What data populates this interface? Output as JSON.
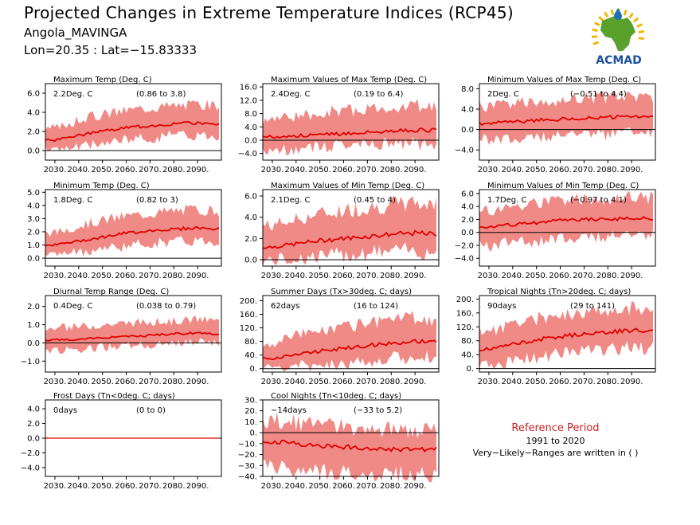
{
  "header": {
    "title": "Projected Changes in Extreme Temperature Indices (RCP45)",
    "location": "Angola_MAVINGA",
    "coords": "Lon=20.35 : Lat=−15.83333"
  },
  "logo": {
    "text": "ACMAD",
    "colors": {
      "africa": "#5aa02c",
      "rays": "#f2b705",
      "drop": "#1d6fb8",
      "text": "#1d4f9c"
    }
  },
  "reference": {
    "title": "Reference Period",
    "years": "1991 to 2020",
    "note": "Very−Likely−Ranges are written in ( )"
  },
  "colors": {
    "band": "#f08a86",
    "line": "#e00000",
    "zero": "#000000"
  },
  "chart_data": [
    {
      "type": "area",
      "title": "Maximum Temp (Deg. C)",
      "stat": "2.2Deg. C",
      "range": "(0.86 to 3.8)",
      "x": [
        2030,
        2040,
        2050,
        2060,
        2070,
        2080,
        2090,
        2099
      ],
      "ylim": [
        -1.0,
        7.0
      ],
      "yticks": [
        "6.0",
        "4.0",
        "2.0",
        "0.0"
      ],
      "ytick_values": [
        6,
        4,
        2,
        0
      ],
      "xticks": [
        "2030.",
        "2040.",
        "2050.",
        "2060.",
        "2070.",
        "2080.",
        "2090."
      ],
      "median": [
        1.1,
        1.6,
        2.0,
        2.4,
        2.6,
        2.8,
        2.9,
        2.8
      ],
      "low": [
        0.3,
        0.6,
        1.0,
        1.4,
        1.6,
        1.8,
        1.9,
        1.8
      ],
      "high": [
        2.2,
        3.0,
        3.6,
        4.0,
        4.3,
        4.5,
        4.6,
        4.5
      ]
    },
    {
      "type": "area",
      "title": "Maximum Values of Max Temp (Deg. C)",
      "stat": "2.4Deg. C",
      "range": "(0.19 to 6.4)",
      "x": [
        2030,
        2040,
        2050,
        2060,
        2070,
        2080,
        2090,
        2099
      ],
      "ylim": [
        -6.0,
        17.0
      ],
      "yticks": [
        "16.0",
        "12.0",
        "8.0",
        "4.0",
        "0.0",
        "−4.0"
      ],
      "ytick_values": [
        16,
        12,
        8,
        4,
        0,
        -4
      ],
      "xticks": [
        "2030.",
        "2040.",
        "2050.",
        "2060.",
        "2070.",
        "2080.",
        "2090."
      ],
      "median": [
        1.0,
        1.3,
        1.7,
        2.0,
        2.4,
        2.7,
        3.0,
        3.0
      ],
      "low": [
        -2.5,
        -1.8,
        -1.2,
        -1.0,
        -0.7,
        -0.5,
        -0.3,
        -0.4
      ],
      "high": [
        5.5,
        6.5,
        7.5,
        8.0,
        8.5,
        9.0,
        9.5,
        9.2
      ]
    },
    {
      "type": "area",
      "title": "Minimum Values of Max Temp (Deg. C)",
      "stat": "2Deg. C",
      "range": "(−0.51 to 4.4)",
      "x": [
        2030,
        2040,
        2050,
        2060,
        2070,
        2080,
        2090,
        2099
      ],
      "ylim": [
        -6.0,
        9.0
      ],
      "yticks": [
        "8.0",
        "4.0",
        "0.0",
        "−4.0"
      ],
      "ytick_values": [
        8,
        4,
        0,
        -4
      ],
      "xticks": [
        "2030.",
        "2040.",
        "2050.",
        "2060.",
        "2070.",
        "2080.",
        "2090."
      ],
      "median": [
        1.2,
        1.5,
        1.8,
        2.0,
        2.2,
        2.4,
        2.5,
        2.4
      ],
      "low": [
        -1.5,
        -1.2,
        -0.9,
        -0.6,
        -0.4,
        -0.2,
        0.0,
        -0.2
      ],
      "high": [
        4.0,
        4.5,
        5.0,
        5.3,
        5.6,
        5.8,
        6.0,
        5.8
      ]
    },
    {
      "type": "area",
      "title": "Minimum Temp (Deg. C)",
      "stat": "1.8Deg. C",
      "range": "(0.82 to 3)",
      "x": [
        2030,
        2040,
        2050,
        2060,
        2070,
        2080,
        2090,
        2099
      ],
      "ylim": [
        -0.6,
        5.2
      ],
      "yticks": [
        "5.0",
        "4.0",
        "3.0",
        "2.0",
        "1.0",
        "0.0"
      ],
      "ytick_values": [
        5,
        4,
        3,
        2,
        1,
        0
      ],
      "xticks": [
        "2030.",
        "2040.",
        "2050.",
        "2060.",
        "2070.",
        "2080.",
        "2090."
      ],
      "median": [
        1.0,
        1.3,
        1.6,
        1.9,
        2.1,
        2.2,
        2.3,
        2.2
      ],
      "low": [
        0.4,
        0.6,
        0.9,
        1.1,
        1.3,
        1.4,
        1.5,
        1.4
      ],
      "high": [
        1.8,
        2.3,
        2.7,
        3.0,
        3.2,
        3.4,
        3.5,
        3.4
      ]
    },
    {
      "type": "area",
      "title": "Maximum Values of Min Temp (Deg. C)",
      "stat": "2.1Deg. C",
      "range": "(0.45 to 4)",
      "x": [
        2030,
        2040,
        2050,
        2060,
        2070,
        2080,
        2090,
        2099
      ],
      "ylim": [
        -0.6,
        6.6
      ],
      "yticks": [
        "6.0",
        "4.0",
        "2.0",
        "0.0"
      ],
      "ytick_values": [
        6,
        4,
        2,
        0
      ],
      "xticks": [
        "2030.",
        "2040.",
        "2050.",
        "2060.",
        "2070.",
        "2080.",
        "2090."
      ],
      "median": [
        1.2,
        1.5,
        1.8,
        2.0,
        2.2,
        2.4,
        2.5,
        2.4
      ],
      "low": [
        0.2,
        0.4,
        0.6,
        0.8,
        1.0,
        1.1,
        1.2,
        1.1
      ],
      "high": [
        3.0,
        3.5,
        4.0,
        4.3,
        4.6,
        4.8,
        5.0,
        4.9
      ]
    },
    {
      "type": "area",
      "title": "Minimum Values of Min Temp (Deg. C)",
      "stat": "1.7Deg. C",
      "range": "(−0.97 to 4.1)",
      "x": [
        2030,
        2040,
        2050,
        2060,
        2070,
        2080,
        2090,
        2099
      ],
      "ylim": [
        -5.2,
        6.6
      ],
      "yticks": [
        "6.0",
        "4.0",
        "2.0",
        "0.0",
        "−2.0",
        "−4.0"
      ],
      "ytick_values": [
        6,
        4,
        2,
        0,
        -2,
        -4
      ],
      "xticks": [
        "2030.",
        "2040.",
        "2050.",
        "2060.",
        "2070.",
        "2080.",
        "2090."
      ],
      "median": [
        0.8,
        1.2,
        1.5,
        1.8,
        2.0,
        2.1,
        2.2,
        2.1
      ],
      "low": [
        -1.6,
        -1.2,
        -0.8,
        -0.5,
        -0.3,
        -0.2,
        -0.1,
        -0.2
      ],
      "high": [
        3.0,
        3.5,
        4.0,
        4.3,
        4.6,
        4.8,
        5.0,
        4.8
      ]
    },
    {
      "type": "area",
      "title": "Diurnal Temp Range (Deg. C)",
      "stat": "0.4Deg. C",
      "range": "(0.038 to 0.79)",
      "x": [
        2030,
        2040,
        2050,
        2060,
        2070,
        2080,
        2090,
        2099
      ],
      "ylim": [
        -1.6,
        2.6
      ],
      "yticks": [
        "2.0",
        "1.0",
        "0.0",
        "−1.0"
      ],
      "ytick_values": [
        2,
        1,
        0,
        -1
      ],
      "xticks": [
        "2030.",
        "2040.",
        "2050.",
        "2060.",
        "2070.",
        "2080.",
        "2090."
      ],
      "median": [
        0.15,
        0.2,
        0.3,
        0.35,
        0.4,
        0.5,
        0.55,
        0.5
      ],
      "low": [
        -0.35,
        -0.25,
        -0.15,
        -0.05,
        0.0,
        0.05,
        0.1,
        0.05
      ],
      "high": [
        0.7,
        0.8,
        0.9,
        1.0,
        1.05,
        1.1,
        1.2,
        1.1
      ]
    },
    {
      "type": "area",
      "title": "Summer Days (Tx>30deg. C; days)",
      "stat": "62days",
      "range": "(16 to 124)",
      "x": [
        2030,
        2040,
        2050,
        2060,
        2070,
        2080,
        2090,
        2099
      ],
      "ylim": [
        -10,
        215
      ],
      "yticks": [
        "200.",
        "160.",
        "120.",
        "80.",
        "40.",
        "0."
      ],
      "ytick_values": [
        200,
        160,
        120,
        80,
        40,
        0
      ],
      "xticks": [
        "2030.",
        "2040.",
        "2050.",
        "2060.",
        "2070.",
        "2080.",
        "2090."
      ],
      "median": [
        30,
        42,
        52,
        60,
        68,
        75,
        80,
        78
      ],
      "low": [
        5,
        12,
        20,
        26,
        32,
        38,
        42,
        40
      ],
      "high": [
        70,
        90,
        108,
        118,
        128,
        135,
        140,
        136
      ]
    },
    {
      "type": "area",
      "title": "Tropical Nights (Tn>20deg. C; days)",
      "stat": "90days",
      "range": "(29 to 141)",
      "x": [
        2030,
        2040,
        2050,
        2060,
        2070,
        2080,
        2090,
        2099
      ],
      "ylim": [
        -10,
        210
      ],
      "yticks": [
        "200.",
        "160.",
        "120.",
        "80.",
        "40.",
        "0."
      ],
      "ytick_values": [
        200,
        160,
        120,
        80,
        40,
        0
      ],
      "xticks": [
        "2030.",
        "2040.",
        "2050.",
        "2060.",
        "2070.",
        "2080.",
        "2090."
      ],
      "median": [
        55,
        70,
        82,
        92,
        100,
        105,
        110,
        108
      ],
      "low": [
        18,
        30,
        40,
        50,
        58,
        63,
        68,
        66
      ],
      "high": [
        100,
        120,
        135,
        145,
        155,
        160,
        165,
        162
      ]
    },
    {
      "type": "area",
      "title": "Frost Days (Tn<0deg. C; days)",
      "stat": "0days",
      "range": "(0 to 0)",
      "x": [
        2030,
        2040,
        2050,
        2060,
        2070,
        2080,
        2090,
        2099
      ],
      "ylim": [
        -5.2,
        5.2
      ],
      "yticks": [
        "4.0",
        "2.0",
        "0.0",
        "−2.0",
        "−4.0"
      ],
      "ytick_values": [
        4,
        2,
        0,
        -2,
        -4
      ],
      "xticks": [
        "2030.",
        "2040.",
        "2050.",
        "2060.",
        "2070.",
        "2080.",
        "2090."
      ],
      "median": [
        0,
        0,
        0,
        0,
        0,
        0,
        0,
        0
      ],
      "low": [
        0,
        0,
        0,
        0,
        0,
        0,
        0,
        0
      ],
      "high": [
        0,
        0,
        0,
        0,
        0,
        0,
        0,
        0
      ]
    },
    {
      "type": "area",
      "title": "Cool Nights (Tn<10deg. C; days)",
      "stat": "−14days",
      "range": "(−33 to 5.2)",
      "x": [
        2030,
        2040,
        2050,
        2060,
        2070,
        2080,
        2090,
        2099
      ],
      "ylim": [
        -40,
        30
      ],
      "yticks": [
        "30.",
        "20.",
        "10.",
        "0.",
        "−10.",
        "−20.",
        "−30.",
        "−40."
      ],
      "ytick_values": [
        30,
        20,
        10,
        0,
        -10,
        -20,
        -30,
        -40
      ],
      "xticks": [
        "2030.",
        "2040.",
        "2050.",
        "2060.",
        "2070.",
        "2080.",
        "2090."
      ],
      "median": [
        -8,
        -10,
        -12,
        -13,
        -14,
        -15,
        -16,
        -15
      ],
      "low": [
        -28,
        -30,
        -32,
        -33,
        -34,
        -35,
        -35,
        -35
      ],
      "high": [
        8,
        6,
        4,
        2,
        1,
        0,
        -1,
        0
      ]
    }
  ]
}
